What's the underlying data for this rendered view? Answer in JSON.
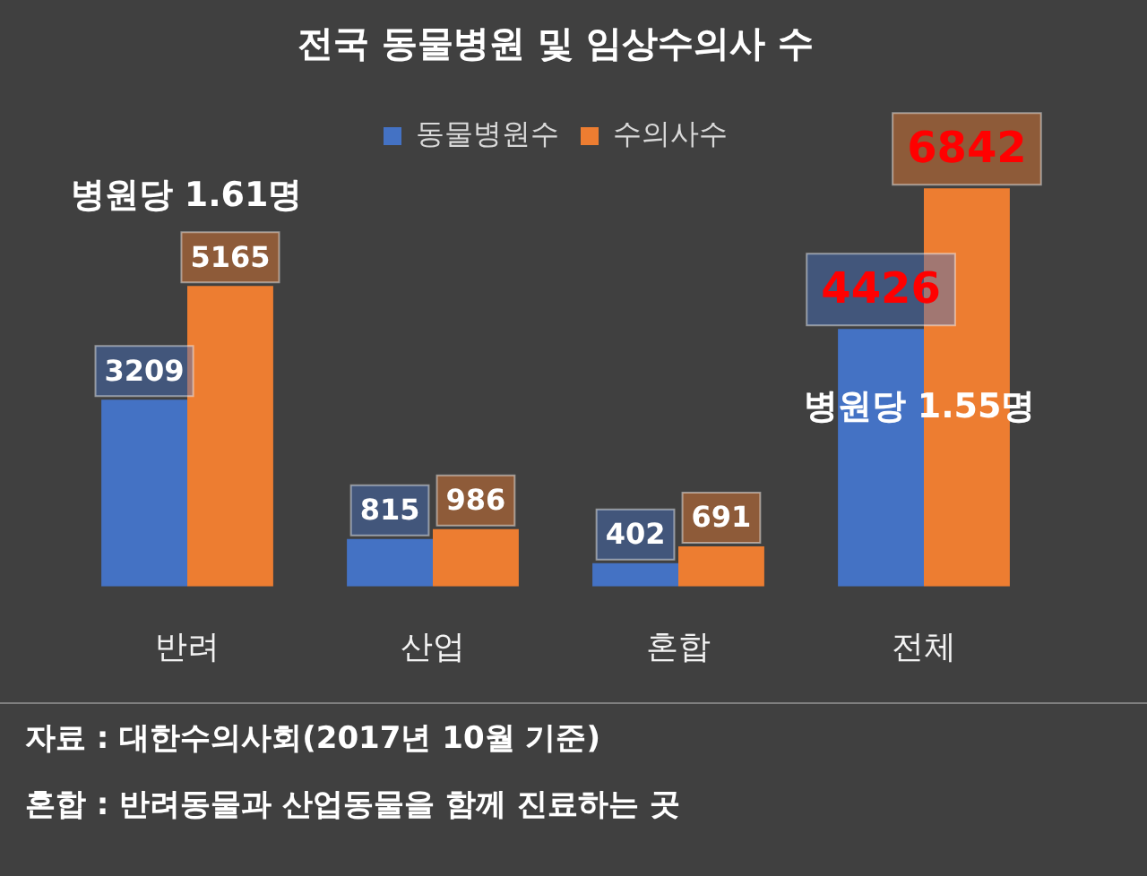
{
  "chart_data": {
    "type": "bar",
    "title": "전국 동물병원 및 임상수의사 수",
    "categories": [
      "반려",
      "산업",
      "혼합",
      "전체"
    ],
    "series": [
      {
        "name": "동물병원수",
        "color": "#4472c4",
        "values": [
          3209,
          815,
          402,
          4426
        ]
      },
      {
        "name": "수의사수",
        "color": "#ed7d31",
        "values": [
          5165,
          986,
          691,
          6842
        ]
      }
    ],
    "data_labels": true,
    "legend": "top",
    "tick_labels": "x",
    "annotations": [
      "병원당 1.61명",
      "병원당 1.55명",
      "자료 : 대한수의사회(2017년 10월 기준)",
      "혼합 : 반려동물과 산업동물을 함께 진료하는 곳"
    ]
  }
}
